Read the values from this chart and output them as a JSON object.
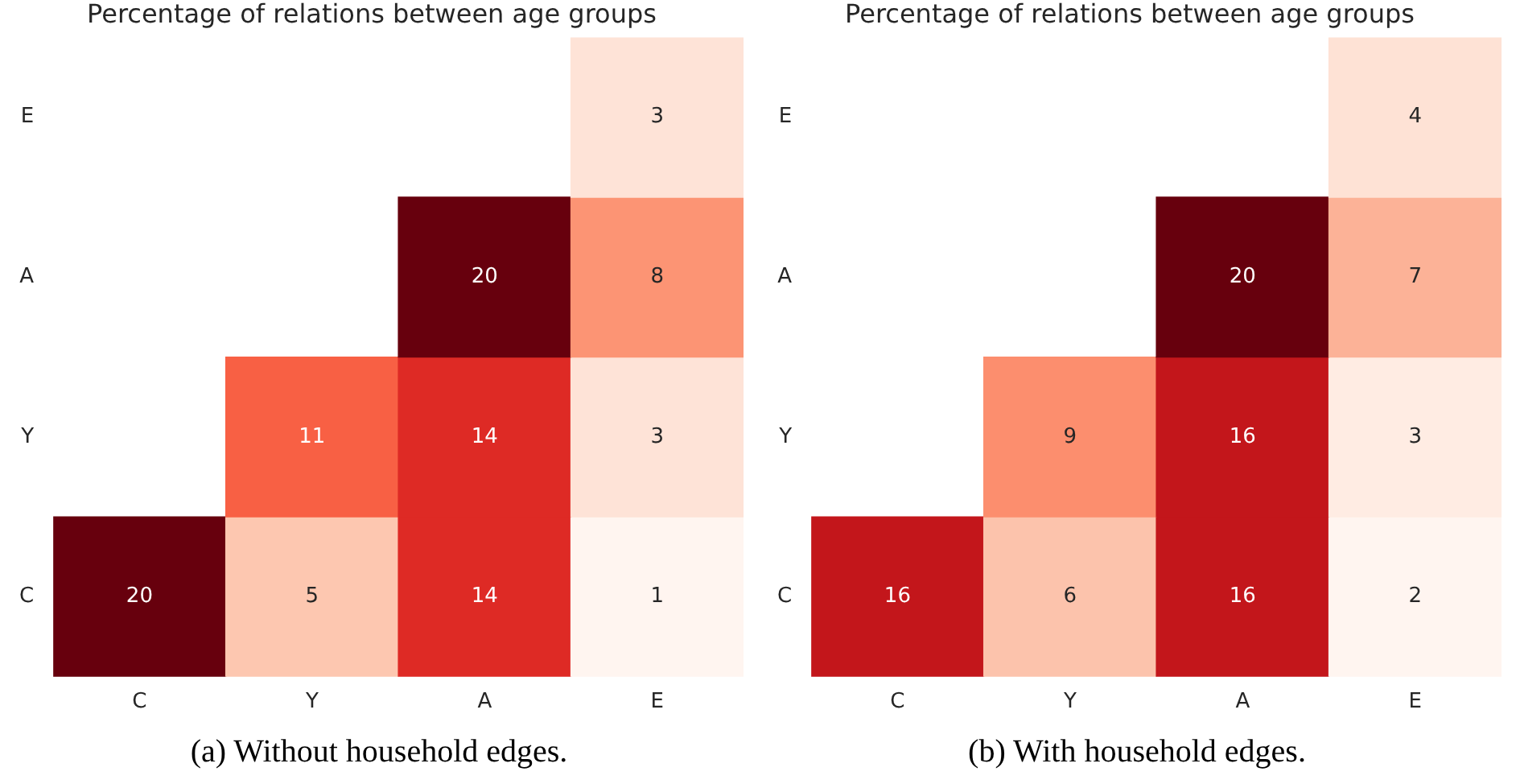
{
  "chart_data": [
    {
      "type": "heatmap",
      "title": "Percentage of relations between age groups",
      "categories": [
        "C",
        "Y",
        "A",
        "E"
      ],
      "y_categories": [
        "E",
        "A",
        "Y",
        "C"
      ],
      "cells": [
        [
          null,
          null,
          null,
          3
        ],
        [
          null,
          null,
          20,
          8
        ],
        [
          null,
          11,
          14,
          3
        ],
        [
          20,
          5,
          14,
          1
        ]
      ],
      "data_labels": true,
      "grid": false,
      "annotations": [
        "(a) Without household edges."
      ]
    },
    {
      "type": "heatmap",
      "title": "Percentage of relations between age groups",
      "categories": [
        "C",
        "Y",
        "A",
        "E"
      ],
      "y_categories": [
        "E",
        "A",
        "Y",
        "C"
      ],
      "cells": [
        [
          null,
          null,
          null,
          4
        ],
        [
          null,
          null,
          20,
          7
        ],
        [
          null,
          9,
          16,
          3
        ],
        [
          16,
          6,
          16,
          2
        ]
      ],
      "data_labels": true,
      "grid": false,
      "annotations": [
        "(b) With household edges."
      ]
    }
  ]
}
